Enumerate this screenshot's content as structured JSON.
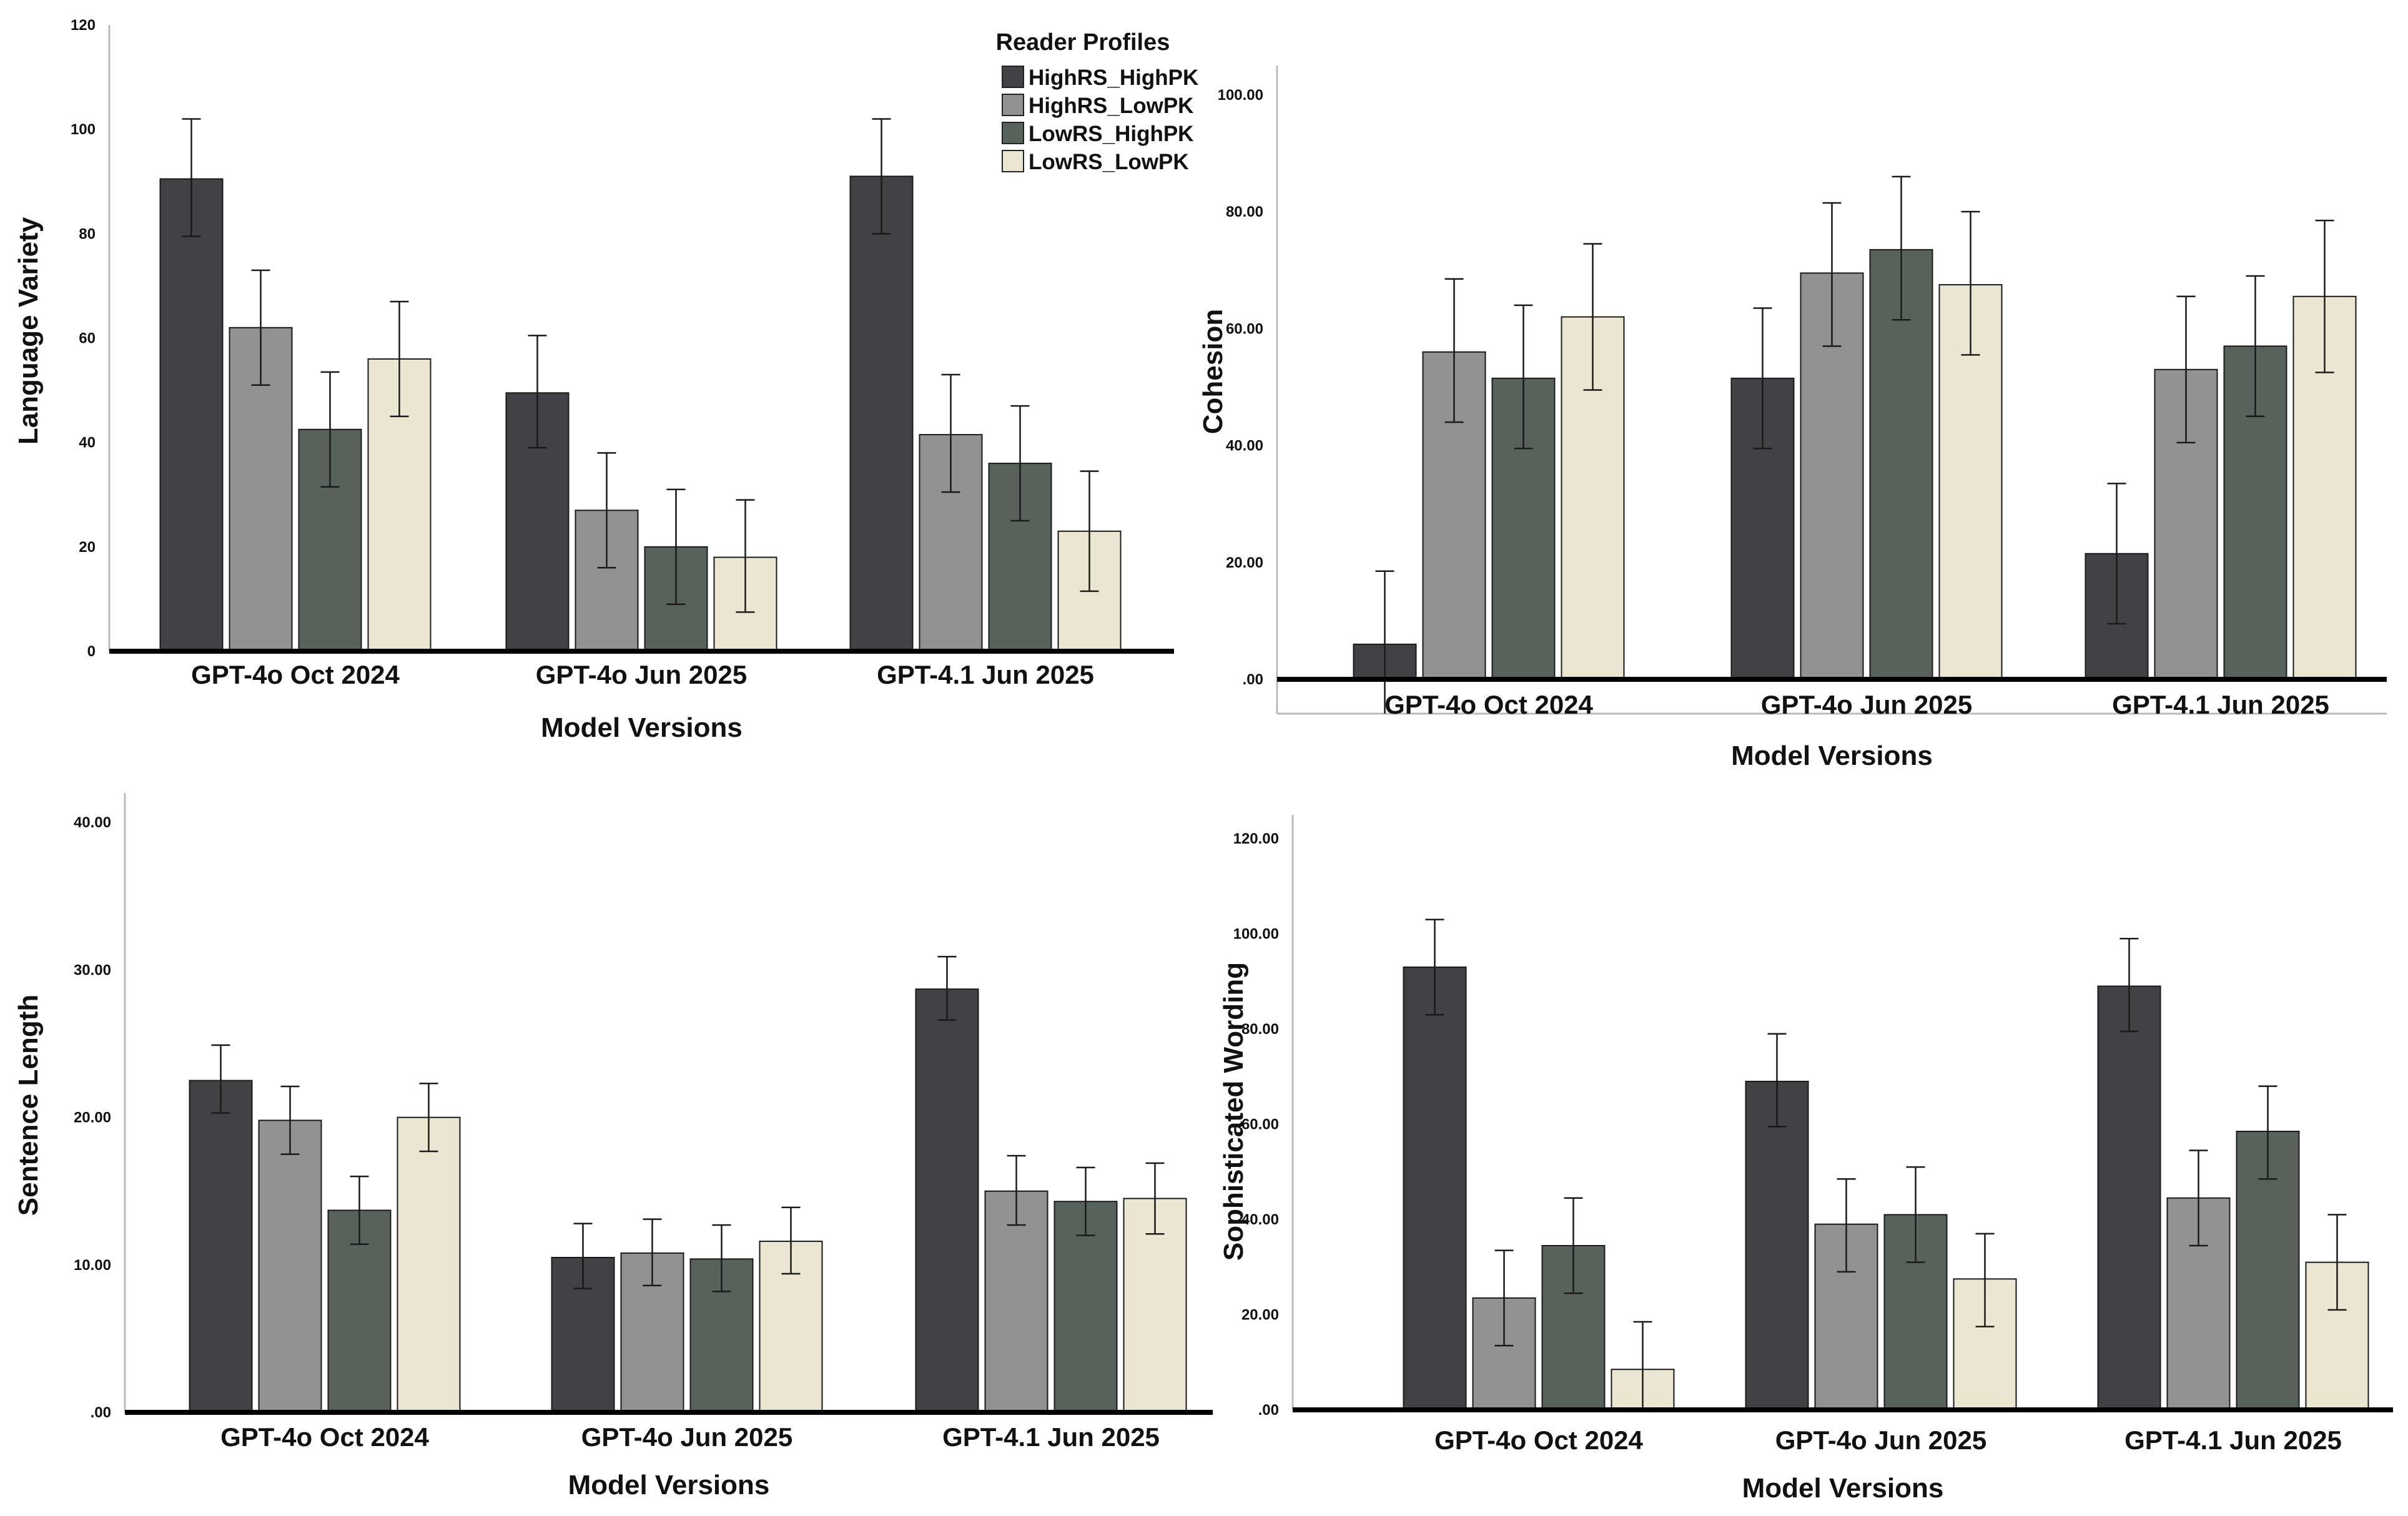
{
  "legend": {
    "title": "Reader Profiles",
    "entries": [
      "HighRS_HighPK",
      "HighRS_LowPK",
      "LowRS_HighPK",
      "LowRS_LowPK"
    ]
  },
  "colors": {
    "HighRS_HighPK": "#414246",
    "HighRS_LowPK": "#929292",
    "LowRS_HighPK": "#57625a",
    "LowRS_LowPK": "#ebe6d2"
  },
  "chart_data": [
    {
      "type": "bar",
      "title": "",
      "xlabel": "Model Versions",
      "ylabel": "Language Variety",
      "categories": [
        "GPT-4o Oct 2024",
        "GPT-4o Jun 2025",
        "GPT-4.1 Jun 2025"
      ],
      "ylim": [
        0,
        120
      ],
      "yticks": [
        0,
        20,
        40,
        60,
        80,
        100,
        120
      ],
      "ytick_labels": [
        "0",
        "20",
        "40",
        "60",
        "80",
        "100",
        "120"
      ],
      "legend_position": "top-right",
      "series": [
        {
          "name": "HighRS_HighPK",
          "values": [
            90.5,
            49.5,
            91
          ],
          "error_low": [
            79.5,
            39,
            80
          ],
          "error_high": [
            102,
            60.5,
            102
          ]
        },
        {
          "name": "HighRS_LowPK",
          "values": [
            62,
            27,
            41.5
          ],
          "error_low": [
            51,
            16,
            30.5
          ],
          "error_high": [
            73,
            38,
            53
          ]
        },
        {
          "name": "LowRS_HighPK",
          "values": [
            42.5,
            20,
            36
          ],
          "error_low": [
            31.5,
            9,
            25
          ],
          "error_high": [
            53.5,
            31,
            47
          ]
        },
        {
          "name": "LowRS_LowPK",
          "values": [
            56,
            18,
            23
          ],
          "error_low": [
            45,
            7.5,
            11.5
          ],
          "error_high": [
            67,
            29,
            34.5
          ]
        }
      ]
    },
    {
      "type": "bar",
      "title": "",
      "xlabel": "Model Versions",
      "ylabel": "Cohesion",
      "categories": [
        "GPT-4o Oct 2024",
        "GPT-4o Jun 2025",
        "GPT-4.1 Jun 2025"
      ],
      "ylim": [
        -6,
        105
      ],
      "yticks": [
        0,
        20,
        40,
        60,
        80,
        100
      ],
      "ytick_labels": [
        ".00",
        "20.00",
        "40.00",
        "60.00",
        "80.00",
        "100.00"
      ],
      "series": [
        {
          "name": "HighRS_HighPK",
          "values": [
            6,
            51.5,
            21.5
          ],
          "error_low": [
            -6,
            39.5,
            9.5
          ],
          "error_high": [
            18.5,
            63.5,
            33.5
          ]
        },
        {
          "name": "HighRS_LowPK",
          "values": [
            56,
            69.5,
            53
          ],
          "error_low": [
            44,
            57,
            40.5
          ],
          "error_high": [
            68.5,
            81.5,
            65.5
          ]
        },
        {
          "name": "LowRS_HighPK",
          "values": [
            51.5,
            73.5,
            57
          ],
          "error_low": [
            39.5,
            61.5,
            45
          ],
          "error_high": [
            64,
            86,
            69
          ]
        },
        {
          "name": "LowRS_LowPK",
          "values": [
            62,
            67.5,
            65.5
          ],
          "error_low": [
            49.5,
            55.5,
            52.5
          ],
          "error_high": [
            74.5,
            80,
            78.5
          ]
        }
      ]
    },
    {
      "type": "bar",
      "title": "",
      "xlabel": "Model Versions",
      "ylabel": "Sentence Length",
      "categories": [
        "GPT-4o Oct 2024",
        "GPT-4o Jun 2025",
        "GPT-4.1 Jun 2025"
      ],
      "ylim": [
        0,
        42
      ],
      "yticks": [
        0,
        10,
        20,
        30,
        40
      ],
      "ytick_labels": [
        ".00",
        "10.00",
        "20.00",
        "30.00",
        "40.00"
      ],
      "series": [
        {
          "name": "HighRS_HighPK",
          "values": [
            22.5,
            10.5,
            28.7
          ],
          "error_low": [
            20.3,
            8.4,
            26.6
          ],
          "error_high": [
            24.9,
            12.8,
            30.9
          ]
        },
        {
          "name": "HighRS_LowPK",
          "values": [
            19.8,
            10.8,
            15
          ],
          "error_low": [
            17.5,
            8.6,
            12.7
          ],
          "error_high": [
            22.1,
            13.1,
            17.4
          ]
        },
        {
          "name": "LowRS_HighPK",
          "values": [
            13.7,
            10.4,
            14.3
          ],
          "error_low": [
            11.4,
            8.2,
            12
          ],
          "error_high": [
            16,
            12.7,
            16.6
          ]
        },
        {
          "name": "LowRS_LowPK",
          "values": [
            20,
            11.6,
            14.5
          ],
          "error_low": [
            17.7,
            9.4,
            12.1
          ],
          "error_high": [
            22.3,
            13.9,
            16.9
          ]
        }
      ]
    },
    {
      "type": "bar",
      "title": "",
      "xlabel": "Model Versions",
      "ylabel": "Sophisticated Wording",
      "categories": [
        "GPT-4o Oct 2024",
        "GPT-4o Jun 2025",
        "GPT-4.1 Jun 2025"
      ],
      "ylim": [
        0,
        125
      ],
      "yticks": [
        0,
        20,
        40,
        60,
        80,
        100,
        120
      ],
      "ytick_labels": [
        ".00",
        "20.00",
        "40.00",
        "60.00",
        "80.00",
        "100.00",
        "120.00"
      ],
      "series": [
        {
          "name": "HighRS_HighPK",
          "values": [
            93,
            69,
            89
          ],
          "error_low": [
            83,
            59.5,
            79.5
          ],
          "error_high": [
            103,
            79,
            99
          ]
        },
        {
          "name": "HighRS_LowPK",
          "values": [
            23.5,
            39,
            44.5
          ],
          "error_low": [
            13.5,
            29,
            34.5
          ],
          "error_high": [
            33.5,
            48.5,
            54.5
          ]
        },
        {
          "name": "LowRS_HighPK",
          "values": [
            34.5,
            41,
            58.5
          ],
          "error_low": [
            24.5,
            31,
            48.5
          ],
          "error_high": [
            44.5,
            51,
            68
          ]
        },
        {
          "name": "LowRS_LowPK",
          "values": [
            8.5,
            27.5,
            31
          ],
          "error_low": [
            -1,
            17.5,
            21
          ],
          "error_high": [
            18.5,
            37,
            41
          ]
        }
      ]
    }
  ]
}
